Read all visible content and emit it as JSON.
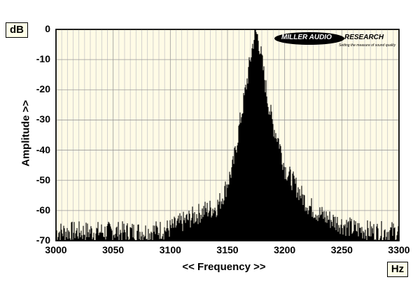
{
  "y_unit": "dB",
  "x_unit": "Hz",
  "logo": {
    "name_part1": "MILLER AUDIO",
    "name_part2": "RESEARCH",
    "tagline": "Setting the measure of sound quality"
  },
  "chart_data": {
    "type": "area",
    "xlabel": "<< Frequency >>",
    "ylabel": "Amplitude >>",
    "xlim": [
      3000,
      3300
    ],
    "ylim": [
      -70,
      0
    ],
    "x_ticks": [
      "3000",
      "3050",
      "3100",
      "3150",
      "3200",
      "3250",
      "3300"
    ],
    "y_ticks": [
      "0",
      "-10",
      "-20",
      "-30",
      "-40",
      "-50",
      "-60",
      "-70"
    ],
    "grid": true,
    "series": [
      {
        "x": [
          3000,
          3020,
          3040,
          3060,
          3080,
          3100,
          3110,
          3120,
          3130,
          3140,
          3145,
          3150,
          3155,
          3160,
          3165,
          3170,
          3173,
          3175,
          3177,
          3180,
          3185,
          3190,
          3195,
          3200,
          3210,
          3220,
          3230,
          3240,
          3260,
          3280,
          3300
        ],
        "values": [
          -67,
          -67,
          -67,
          -67,
          -67,
          -66,
          -64,
          -62,
          -60,
          -59,
          -56,
          -51,
          -45,
          -33,
          -22,
          -10,
          -3,
          -1,
          -3,
          -10,
          -23,
          -32,
          -37,
          -46,
          -52,
          -58,
          -61,
          -63,
          -66,
          -67,
          -67
        ]
      }
    ]
  }
}
